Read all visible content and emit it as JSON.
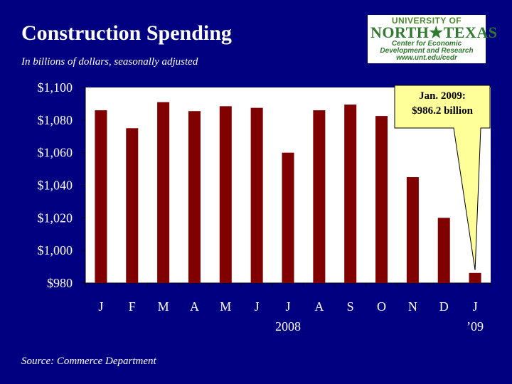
{
  "title": "Construction Spending",
  "subtitle": "In billions of dollars, seasonally adjusted",
  "source": "Source:  Commerce Department",
  "logo": {
    "line1": "UNIVERSITY OF",
    "line2": "NORTH★TEXAS",
    "line3": "Center for Economic",
    "line4": "Development and Research",
    "line5": "www.unt.edu/cedr"
  },
  "callout": {
    "line1": "Jan. 2009:",
    "line2": "$986.2 billion"
  },
  "colors": {
    "background": "#000080",
    "bar": "#800000",
    "plot": "#ffffff",
    "callout": "#ffff99"
  },
  "chart_data": {
    "type": "bar",
    "title": "Construction Spending",
    "ylabel": "In billions of dollars, seasonally adjusted",
    "categories": [
      "J",
      "F",
      "M",
      "A",
      "M",
      "J",
      "J",
      "A",
      "S",
      "O",
      "N",
      "D",
      "J"
    ],
    "values": [
      1086,
      1075,
      1091,
      1085.5,
      1088.5,
      1087.5,
      1060,
      1086,
      1089.5,
      1082.5,
      1045,
      1020,
      986.2
    ],
    "ylim": [
      980,
      1100
    ],
    "yticks": [
      980,
      1000,
      1020,
      1040,
      1060,
      1080,
      1100
    ],
    "ytick_labels": [
      "$980",
      "$1,000",
      "$1,020",
      "$1,040",
      "$1,060",
      "$1,080",
      "$1,100"
    ],
    "year_labels": [
      "2008",
      "’09"
    ],
    "grid": false
  }
}
